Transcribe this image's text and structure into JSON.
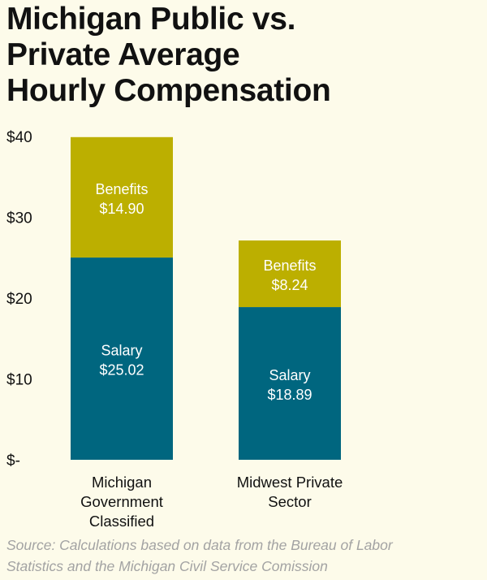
{
  "title_lines": [
    "Michigan Public vs.",
    "Private Average",
    "Hourly Compensation"
  ],
  "source_lines": [
    "Source: Calculations based on data from the Bureau of Labor",
    "Statistics and the Michigan Civil Service Comission"
  ],
  "colors": {
    "salary": "#00667f",
    "benefits": "#bcaf00",
    "background": "#fdfbea",
    "text": "#111111",
    "bar_text": "#ffffff",
    "source_text": "#a3a3a3"
  },
  "chart_data": {
    "type": "bar",
    "stacked": true,
    "title": "Michigan Public vs. Private Average Hourly Compensation",
    "categories": [
      [
        "Michigan",
        "Government",
        "Classified"
      ],
      [
        "Midwest Private",
        "Sector"
      ]
    ],
    "series": [
      {
        "name": "Salary",
        "values": [
          25.02,
          18.89
        ],
        "labels": [
          "$25.02",
          "$18.89"
        ]
      },
      {
        "name": "Benefits",
        "values": [
          14.9,
          8.24
        ],
        "labels": [
          "$14.90",
          "$8.24"
        ]
      }
    ],
    "ylim": [
      0,
      40
    ],
    "yticks": [
      0,
      10,
      20,
      30,
      40
    ],
    "ytick_labels": [
      "$-",
      "$10",
      "$20",
      "$30",
      "$40"
    ],
    "xlabel": "",
    "ylabel": "",
    "grid": false,
    "legend": "none"
  }
}
